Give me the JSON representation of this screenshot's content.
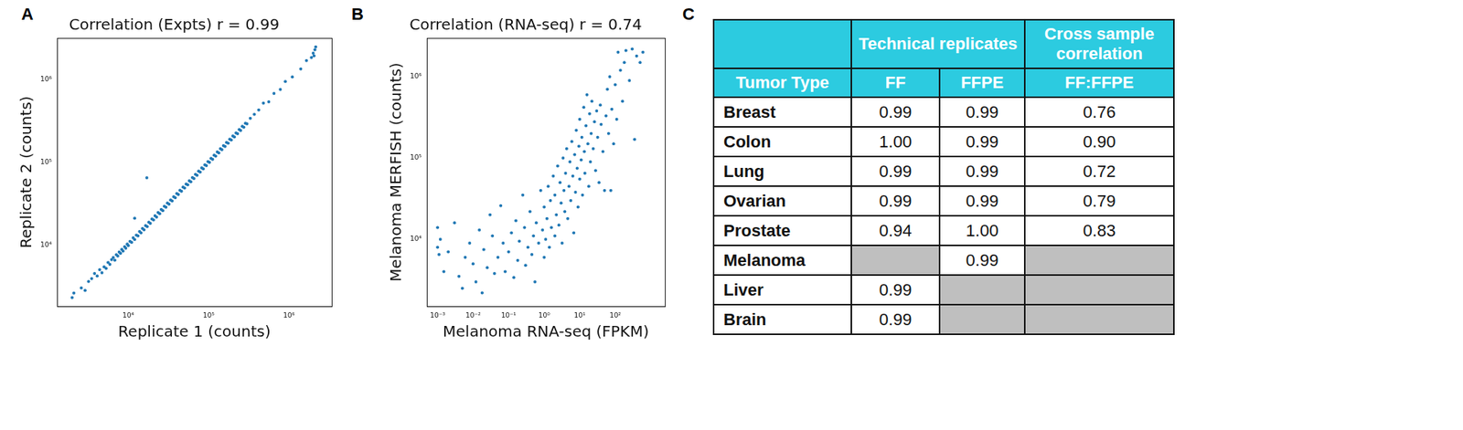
{
  "panel_labels": [
    "A",
    "B",
    "C"
  ],
  "chart_data": [
    {
      "type": "scatter",
      "title": "Correlation (Expts) r = 0.99",
      "x_label": "Replicate 1 (counts)",
      "y_label": "Replicate 2 (counts)",
      "color": "#1f77b4",
      "marker": "circle",
      "log": true,
      "grid": false,
      "xlim": [
        1300,
        3400000
      ],
      "ylim": [
        1800,
        3200000
      ],
      "xticks": [
        {
          "value": 10000,
          "label": "10⁴"
        },
        {
          "value": 100000,
          "label": "10⁵"
        },
        {
          "value": 1000000,
          "label": "10⁶"
        }
      ],
      "yticks": [
        {
          "value": 10000,
          "label": "10⁴"
        },
        {
          "value": 100000,
          "label": "10⁵"
        },
        {
          "value": 1000000,
          "label": "10⁶"
        }
      ],
      "x": [
        2000,
        2100,
        2600,
        2900,
        3200,
        3500,
        3800,
        4100,
        4400,
        4700,
        5000,
        5300,
        5600,
        5900,
        6200,
        6500,
        6800,
        7100,
        7400,
        7700,
        8000,
        8300,
        8600,
        9000,
        9300,
        9700,
        10000,
        10500,
        11000,
        11500,
        12000,
        12600,
        13200,
        13800,
        14400,
        15000,
        15700,
        16400,
        17200,
        18000,
        18800,
        19700,
        20600,
        21500,
        22500,
        23500,
        24600,
        25700,
        26900,
        28100,
        29400,
        30700,
        32100,
        33600,
        35100,
        36700,
        38400,
        40100,
        42000,
        43900,
        45900,
        48000,
        50200,
        52500,
        54900,
        57400,
        60000,
        62800,
        65600,
        68600,
        71700,
        75000,
        78400,
        82000,
        85700,
        89600,
        93700,
        98000,
        102400,
        107000,
        112000,
        117000,
        122400,
        128000,
        133800,
        140000,
        146300,
        153000,
        160000,
        167000,
        175000,
        183000,
        191000,
        200000,
        209000,
        219000,
        229000,
        240000,
        250000,
        262000,
        274000,
        287000,
        300000,
        330000,
        370000,
        420000,
        480000,
        560000,
        650000,
        780000,
        900000,
        1100000,
        1400000,
        1650000,
        1900000,
        2000000,
        2100000,
        2150000,
        2050000,
        17000,
        12000
      ],
      "values": [
        2300,
        2600,
        3000,
        2800,
        3600,
        3900,
        4500,
        4200,
        5000,
        4600,
        5400,
        5200,
        6100,
        5800,
        6600,
        7000,
        6500,
        7600,
        7300,
        8200,
        7900,
        8800,
        8400,
        9500,
        9100,
        10200,
        9800,
        11000,
        10700,
        12200,
        11600,
        13100,
        12800,
        14500,
        14000,
        15800,
        15200,
        17100,
        16600,
        18800,
        18200,
        20600,
        20000,
        22500,
        21700,
        24600,
        23800,
        26800,
        26000,
        29300,
        28500,
        32000,
        31100,
        35000,
        34000,
        38200,
        37200,
        41800,
        40700,
        45700,
        44500,
        50000,
        48700,
        54600,
        53200,
        59700,
        58200,
        65300,
        63600,
        71400,
        69600,
        78000,
        76100,
        85300,
        83200,
        93200,
        90900,
        101900,
        99400,
        111400,
        108700,
        121800,
        118800,
        133100,
        129900,
        145600,
        142000,
        159100,
        155300,
        173800,
        169800,
        190000,
        185700,
        208000,
        203000,
        227000,
        222000,
        249000,
        243000,
        272000,
        266000,
        297000,
        292000,
        340000,
        380000,
        430000,
        520000,
        540000,
        680000,
        760000,
        950000,
        1080000,
        1350000,
        1700000,
        1850000,
        2100000,
        2300000,
        2500000,
        1950000,
        65000,
        21000
      ]
    },
    {
      "type": "scatter",
      "title": "Correlation (RNA-seq) r = 0.74",
      "x_label": "Melanoma RNA-seq (FPKM)",
      "y_label": "Melanoma MERFISH (counts)",
      "color": "#1f77b4",
      "marker": "circle",
      "log": true,
      "grid": false,
      "xlim": [
        0.0005,
        2500
      ],
      "ylim": [
        1500,
        3000000
      ],
      "xticks": [
        {
          "value": 0.001,
          "label": "10⁻³"
        },
        {
          "value": 0.01,
          "label": "10⁻²"
        },
        {
          "value": 0.1,
          "label": "10⁻¹"
        },
        {
          "value": 1,
          "label": "10⁰"
        },
        {
          "value": 10,
          "label": "10¹"
        },
        {
          "value": 100,
          "label": "10²"
        }
      ],
      "yticks": [
        {
          "value": 10000,
          "label": "10⁴"
        },
        {
          "value": 100000,
          "label": "10⁵"
        },
        {
          "value": 1000000,
          "label": "10⁶"
        }
      ],
      "x": [
        0.001,
        0.001,
        0.0011,
        0.0012,
        0.0015,
        0.002,
        0.003,
        0.004,
        0.005,
        0.006,
        0.008,
        0.01,
        0.012,
        0.015,
        0.018,
        0.02,
        0.025,
        0.03,
        0.035,
        0.04,
        0.05,
        0.06,
        0.07,
        0.08,
        0.1,
        0.12,
        0.14,
        0.16,
        0.18,
        0.2,
        0.25,
        0.28,
        0.3,
        0.35,
        0.4,
        0.45,
        0.5,
        0.55,
        0.6,
        0.7,
        0.8,
        0.9,
        1.0,
        1.0,
        1.1,
        1.2,
        1.3,
        1.4,
        1.5,
        1.6,
        1.8,
        2.0,
        2.0,
        2.2,
        2.4,
        2.6,
        2.8,
        3.0,
        3.2,
        3.4,
        3.6,
        3.8,
        4.0,
        4.3,
        4.6,
        5.0,
        5.3,
        5.6,
        6.0,
        6.4,
        6.8,
        7.2,
        7.6,
        8.0,
        8.5,
        9.0,
        9.5,
        10,
        10,
        11,
        11.5,
        12,
        13,
        13.5,
        14,
        15,
        16,
        17,
        18,
        19,
        20,
        21,
        22,
        24,
        26,
        28,
        30,
        32,
        35,
        38,
        40,
        45,
        50,
        55,
        60,
        65,
        70,
        75,
        80,
        90,
        100,
        110,
        120,
        140,
        160,
        180,
        200,
        250,
        300,
        350,
        400,
        500,
        600
      ],
      "values": [
        14000,
        8000,
        6500,
        10000,
        4000,
        7000,
        16000,
        3500,
        2500,
        6000,
        9000,
        5000,
        3000,
        13000,
        2200,
        7500,
        4500,
        20000,
        11000,
        3800,
        6000,
        26000,
        9000,
        4000,
        7000,
        12000,
        3400,
        17000,
        5500,
        9500,
        35000,
        14000,
        4800,
        8000,
        22000,
        6500,
        11000,
        3000,
        16000,
        9000,
        40000,
        13000,
        6000,
        25000,
        10000,
        18000,
        45000,
        8000,
        30000,
        14000,
        60000,
        11000,
        35000,
        20000,
        80000,
        15000,
        50000,
        28000,
        9000,
        100000,
        40000,
        22000,
        65000,
        130000,
        18000,
        45000,
        90000,
        30000,
        160000,
        60000,
        12000,
        110000,
        38000,
        220000,
        75000,
        25000,
        140000,
        55000,
        300000,
        95000,
        180000,
        35000,
        420000,
        120000,
        65000,
        250000,
        600000,
        150000,
        45000,
        350000,
        90000,
        200000,
        500000,
        130000,
        280000,
        70000,
        380000,
        180000,
        50000,
        450000,
        260000,
        120000,
        40000,
        330000,
        700000,
        200000,
        1000000,
        40000,
        400000,
        150000,
        800000,
        300000,
        2000000,
        1200000,
        500000,
        1500000,
        2100000,
        900000,
        2200000,
        170000,
        1800000,
        1500000,
        2000000
      ]
    }
  ],
  "table": {
    "columns": [
      {
        "name": "Tumor Type"
      },
      {
        "group": "Technical replicates",
        "name": "FF"
      },
      {
        "group": "Technical replicates",
        "name": "FFPE"
      },
      {
        "group": "Cross sample correlation",
        "name": "FF:FFPE"
      }
    ],
    "rows": [
      [
        "Breast",
        "0.99",
        "0.99",
        "0.76"
      ],
      [
        "Colon",
        "1.00",
        "0.99",
        "0.90"
      ],
      [
        "Lung",
        "0.99",
        "0.99",
        "0.72"
      ],
      [
        "Ovarian",
        "0.99",
        "0.99",
        "0.79"
      ],
      [
        "Prostate",
        "0.94",
        "1.00",
        "0.83"
      ],
      [
        "Melanoma",
        null,
        "0.99",
        null
      ],
      [
        "Liver",
        "0.99",
        null,
        null
      ],
      [
        "Brain",
        "0.99",
        null,
        null
      ]
    ]
  }
}
